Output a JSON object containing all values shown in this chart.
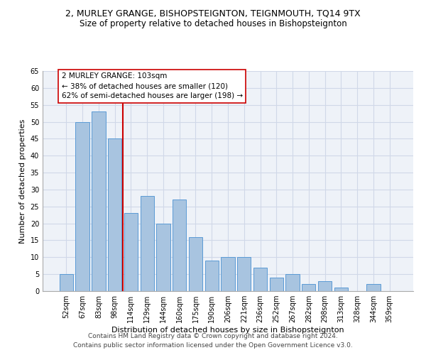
{
  "title": "2, MURLEY GRANGE, BISHOPSTEIGNTON, TEIGNMOUTH, TQ14 9TX",
  "subtitle": "Size of property relative to detached houses in Bishopsteignton",
  "xlabel": "Distribution of detached houses by size in Bishopsteignton",
  "ylabel": "Number of detached properties",
  "categories": [
    "52sqm",
    "67sqm",
    "83sqm",
    "98sqm",
    "114sqm",
    "129sqm",
    "144sqm",
    "160sqm",
    "175sqm",
    "190sqm",
    "206sqm",
    "221sqm",
    "236sqm",
    "252sqm",
    "267sqm",
    "282sqm",
    "298sqm",
    "313sqm",
    "328sqm",
    "344sqm",
    "359sqm"
  ],
  "values": [
    5,
    50,
    53,
    45,
    23,
    28,
    20,
    27,
    16,
    9,
    10,
    10,
    7,
    4,
    5,
    2,
    3,
    1,
    0,
    2,
    0
  ],
  "bar_color": "#a8c4e0",
  "bar_edge_color": "#5b9bd5",
  "grid_color": "#d0d8e8",
  "background_color": "#eef2f8",
  "vline_x": 3.5,
  "vline_color": "#cc0000",
  "annotation_text": "2 MURLEY GRANGE: 103sqm\n← 38% of detached houses are smaller (120)\n62% of semi-detached houses are larger (198) →",
  "annotation_box_color": "#ffffff",
  "annotation_box_edge": "#cc0000",
  "ylim": [
    0,
    65
  ],
  "yticks": [
    0,
    5,
    10,
    15,
    20,
    25,
    30,
    35,
    40,
    45,
    50,
    55,
    60,
    65
  ],
  "footer1": "Contains HM Land Registry data © Crown copyright and database right 2024.",
  "footer2": "Contains public sector information licensed under the Open Government Licence v3.0.",
  "title_fontsize": 9,
  "subtitle_fontsize": 8.5,
  "xlabel_fontsize": 8,
  "ylabel_fontsize": 8,
  "tick_fontsize": 7,
  "annotation_fontsize": 7.5,
  "footer_fontsize": 6.5
}
